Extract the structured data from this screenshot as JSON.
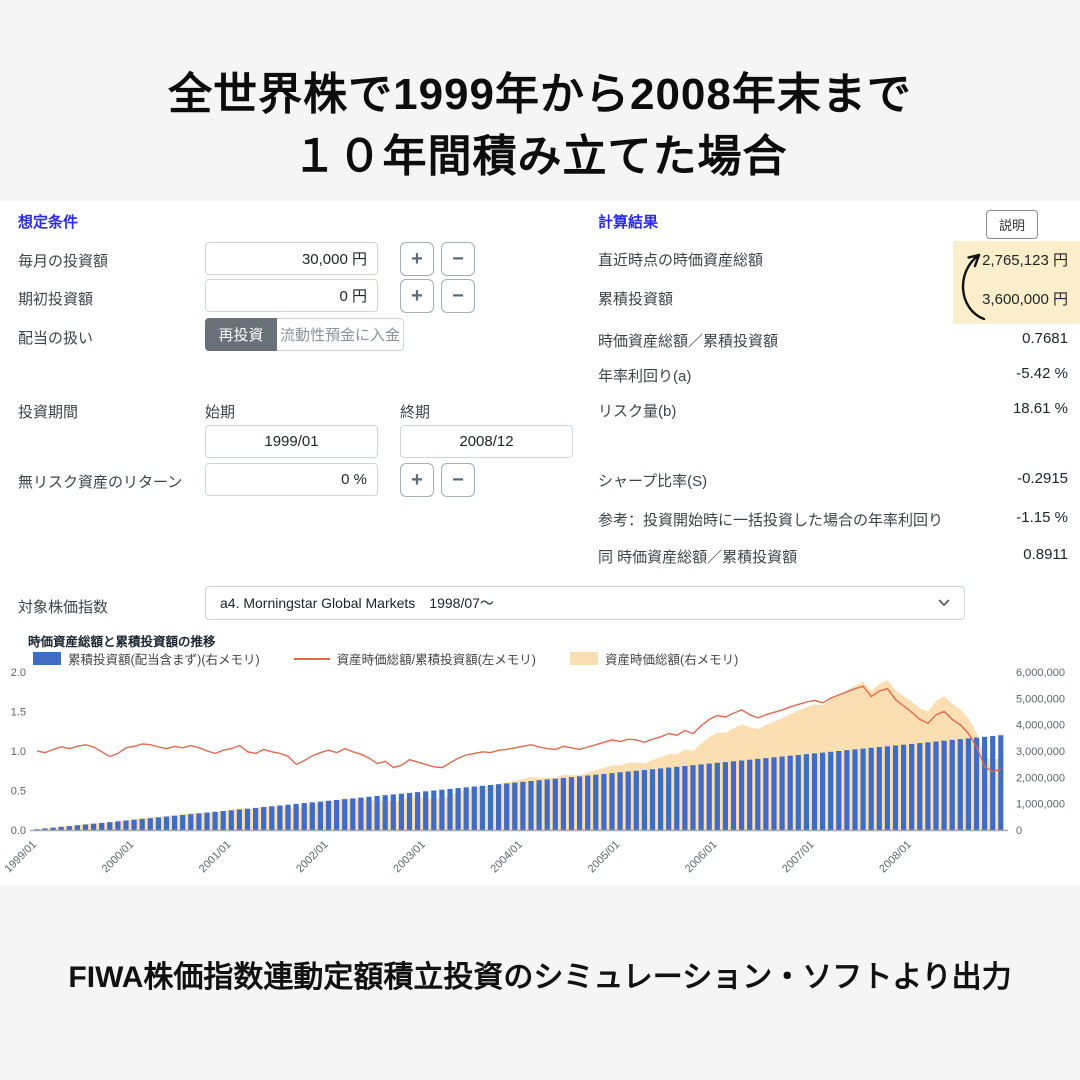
{
  "header": {
    "title_line1": "全世界株で1999年から2008年末まで",
    "title_line2": "１０年間積み立てた場合"
  },
  "footer": {
    "text": "FIWA株価指数連動定額積立投資のシミュレーション・ソフトより出力"
  },
  "assumptions": {
    "section_title": "想定条件",
    "monthly_label": "毎月の投資額",
    "monthly_value": "30,000 円",
    "initial_label": "期初投資額",
    "initial_value": "0 円",
    "dividend_label": "配当の扱い",
    "dividend_option_reinvest": "再投資",
    "dividend_option_deposit": "流動性預金に入金",
    "period_label": "投資期間",
    "period_start_label": "始期",
    "period_start_value": "1999/01",
    "period_end_label": "終期",
    "period_end_value": "2008/12",
    "riskfree_label": "無リスク資産のリターン",
    "riskfree_value": "0 %",
    "index_label": "対象株価指数",
    "index_value": "a4. Morningstar Global Markets　1998/07～",
    "plus_label": "+",
    "minus_label": "−"
  },
  "results": {
    "section_title": "計算結果",
    "explain_button": "説明",
    "highlight_color": "#faeecb",
    "rows": [
      {
        "label": "直近時点の時価資産総額",
        "value": "2,765,123 円"
      },
      {
        "label": "累積投資額",
        "value": "3,600,000 円"
      },
      {
        "label": "時価資産総額／累積投資額",
        "value": "0.7681"
      },
      {
        "label": "年率利回り(a)",
        "value": "-5.42 %"
      },
      {
        "label": "リスク量(b)",
        "value": "18.61 %"
      },
      {
        "label": "シャープ比率(S)",
        "value": "-0.2915"
      },
      {
        "label": "参考：投資開始時に一括投資した場合の年率利回り",
        "value": "-1.15 %"
      },
      {
        "label": "同 時価資産総額／累積投資額",
        "value": "0.8911"
      }
    ]
  },
  "chart_data": {
    "type": "combo",
    "title": "時価資産総額と累積投資額の推移",
    "legend": [
      {
        "label": "累積投資額(配当含まず)(右メモリ)",
        "swatch": "bar",
        "color": "#3f6dc6"
      },
      {
        "label": "資産時価総額/累積投資額(左メモリ)",
        "swatch": "line",
        "color": "#e06a50"
      },
      {
        "label": "資産時価総額(右メモリ)",
        "swatch": "area",
        "color": "#fbdfb2"
      }
    ],
    "months": 120,
    "monthly_contribution": 30000,
    "x_tick_labels": [
      "1999/01",
      "2000/01",
      "2001/01",
      "2002/01",
      "2003/01",
      "2004/01",
      "2005/01",
      "2006/01",
      "2007/01",
      "2008/01"
    ],
    "left_axis": {
      "label_format": "ratio",
      "ticks": [
        0.0,
        0.5,
        1.0,
        1.5,
        2.0
      ],
      "range": [
        0,
        2.0
      ]
    },
    "right_axis": {
      "label_format": "yen",
      "ticks": [
        0,
        1000000,
        2000000,
        3000000,
        4000000,
        5000000,
        6000000
      ],
      "range": [
        0,
        6000000
      ]
    },
    "series_notes": "bars = cumulative contribution (right axis); area = market value = ratio × bars (right axis); line = ratio (left axis)",
    "ratio_series": [
      1.0,
      0.98,
      1.02,
      1.05,
      1.03,
      1.06,
      1.08,
      1.05,
      0.99,
      0.93,
      0.97,
      1.04,
      1.06,
      1.09,
      1.08,
      1.05,
      1.03,
      1.06,
      1.04,
      1.07,
      1.04,
      1.0,
      0.97,
      1.01,
      1.03,
      1.07,
      0.99,
      0.97,
      1.02,
      0.99,
      0.97,
      0.93,
      0.83,
      0.88,
      0.94,
      0.98,
      1.01,
      0.98,
      1.03,
      0.99,
      0.96,
      0.91,
      0.84,
      0.87,
      0.79,
      0.82,
      0.89,
      0.86,
      0.83,
      0.8,
      0.79,
      0.85,
      0.91,
      0.95,
      0.97,
      0.99,
      0.98,
      1.01,
      1.02,
      1.04,
      1.06,
      1.08,
      1.05,
      1.03,
      1.02,
      1.06,
      1.04,
      1.02,
      1.05,
      1.08,
      1.11,
      1.14,
      1.12,
      1.15,
      1.14,
      1.11,
      1.15,
      1.18,
      1.22,
      1.2,
      1.26,
      1.22,
      1.32,
      1.4,
      1.45,
      1.43,
      1.48,
      1.52,
      1.46,
      1.42,
      1.46,
      1.49,
      1.52,
      1.56,
      1.59,
      1.62,
      1.64,
      1.61,
      1.67,
      1.71,
      1.75,
      1.79,
      1.82,
      1.69,
      1.76,
      1.79,
      1.65,
      1.57,
      1.49,
      1.4,
      1.35,
      1.46,
      1.5,
      1.4,
      1.33,
      1.22,
      1.05,
      0.8,
      0.74,
      0.768
    ]
  }
}
